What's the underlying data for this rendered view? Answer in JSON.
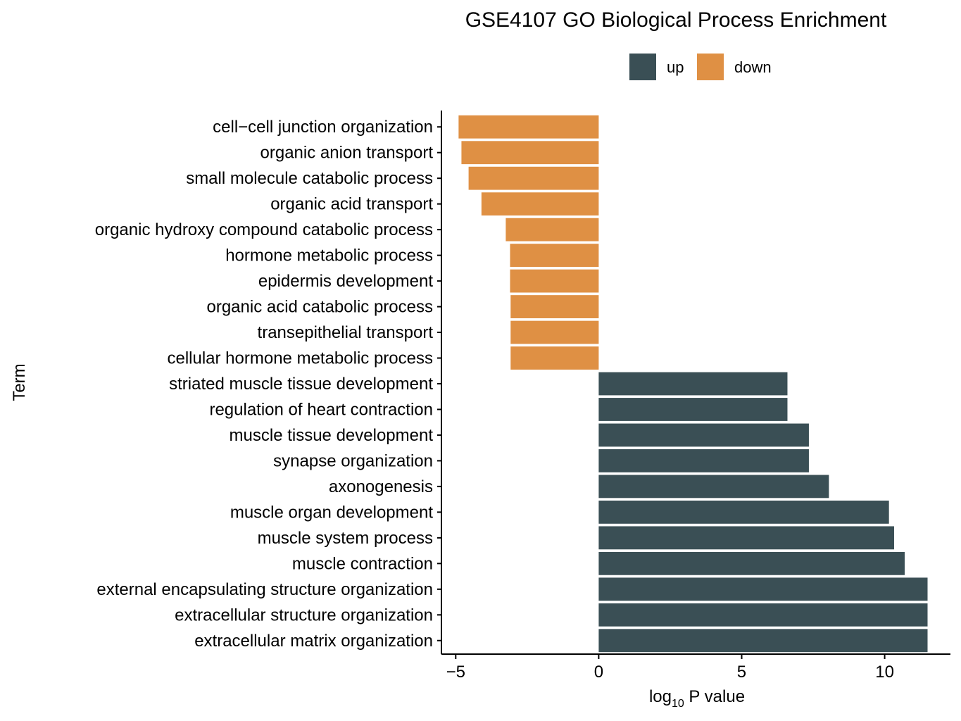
{
  "chart_data": {
    "type": "bar",
    "orientation": "horizontal",
    "title": "GSE4107 GO Biological Process Enrichment",
    "xlabel": "log10 P value",
    "xlabel_parts": {
      "base": "log",
      "sub": "10",
      "rest": " P value"
    },
    "ylabel": "Term",
    "xlim": [
      -5.5,
      12.3
    ],
    "xticks": [
      -5,
      0,
      5,
      10
    ],
    "xtick_labels": [
      "−5",
      "0",
      "5",
      "10"
    ],
    "grid": false,
    "legend": {
      "placement": "top",
      "entries": [
        {
          "name": "up",
          "color": "#3a4f55"
        },
        {
          "name": "down",
          "color": "#df9044"
        }
      ]
    },
    "categories": [
      "cell−cell junction organization",
      "organic anion transport",
      "small molecule catabolic process",
      "organic acid transport",
      "organic hydroxy compound catabolic process",
      "hormone metabolic process",
      "epidermis development",
      "organic acid catabolic process",
      "transepithelial transport",
      "cellular hormone metabolic process",
      "striated muscle tissue development",
      "regulation of heart contraction",
      "muscle tissue development",
      "synapse organization",
      "axonogenesis",
      "muscle organ development",
      "muscle system process",
      "muscle contraction",
      "external encapsulating structure organization",
      "extracellular structure organization",
      "extracellular matrix organization"
    ],
    "values": [
      -4.9,
      -4.8,
      -4.55,
      -4.1,
      -3.25,
      -3.1,
      -3.1,
      -3.08,
      -3.08,
      -3.08,
      6.6,
      6.6,
      7.35,
      7.35,
      8.05,
      10.15,
      10.33,
      10.7,
      11.5,
      11.5,
      11.5
    ],
    "groups": [
      "down",
      "down",
      "down",
      "down",
      "down",
      "down",
      "down",
      "down",
      "down",
      "down",
      "up",
      "up",
      "up",
      "up",
      "up",
      "up",
      "up",
      "up",
      "up",
      "up",
      "up"
    ]
  }
}
